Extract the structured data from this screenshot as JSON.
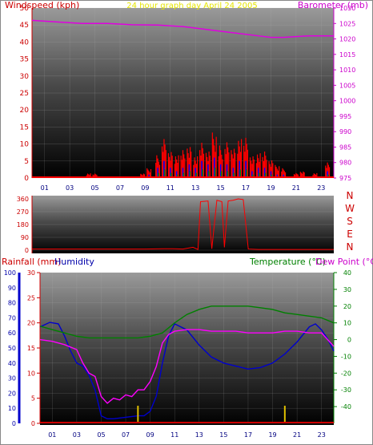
{
  "header": {
    "left_label": "Windspeed (kph)",
    "center_label": "24 hour graph day   April 24 2005",
    "right_label": "Barometer (mb)"
  },
  "colors": {
    "windspeed": "#ff0000",
    "barometer": "#e000e0",
    "rain": "#cc0000",
    "humidity": "#0000cc",
    "temperature": "#008000",
    "dewpoint": "#ff00ff",
    "gust": "#ff0000",
    "avg_wind": "#0000ff",
    "min_wind": "#008000",
    "center_title": "#ffff00"
  },
  "chart_data": [
    {
      "type": "line",
      "panel": "wind-barometer",
      "x_ticks": [
        "01",
        "03",
        "05",
        "07",
        "09",
        "11",
        "13",
        "15",
        "17",
        "19",
        "21",
        "23"
      ],
      "left_axis": {
        "label": "Windspeed (kph)",
        "ylim": [
          0,
          50
        ],
        "ticks": [
          0,
          5,
          10,
          15,
          20,
          25,
          30,
          35,
          40,
          45,
          50
        ]
      },
      "right_axis": {
        "label": "Barometer (mb)",
        "ylim": [
          975,
          1030
        ],
        "ticks": [
          975,
          980,
          985,
          990,
          995,
          1000,
          1005,
          1010,
          1015,
          1020,
          1025,
          1030
        ]
      },
      "series": [
        {
          "name": "Barometer (mb)",
          "axis": "right",
          "x": [
            0,
            2,
            4,
            6,
            8,
            10,
            12,
            14,
            16,
            18,
            19,
            20,
            22,
            24
          ],
          "values": [
            1026,
            1025.5,
            1025,
            1025,
            1024.6,
            1024.5,
            1024,
            1023,
            1022,
            1021,
            1020.5,
            1020.5,
            1021,
            1021
          ]
        }
      ],
      "wind_samples": {
        "x": [
          4.5,
          5.0,
          8.8,
          9.3,
          10.0,
          10.5,
          11.0,
          11.5,
          12.0,
          12.5,
          13.0,
          13.5,
          14.0,
          14.5,
          15.0,
          15.5,
          16.0,
          16.5,
          17.0,
          17.5,
          18.0,
          18.5,
          19.0,
          19.5,
          20.0,
          21.0,
          21.5,
          22.5,
          23.5
        ],
        "gust": [
          1.5,
          1.5,
          1.5,
          3,
          7,
          12,
          8,
          7,
          9,
          10,
          7,
          12,
          9,
          14,
          10,
          11,
          9,
          12,
          13,
          7,
          8,
          9,
          6,
          4,
          3,
          1.5,
          2,
          1.5,
          5
        ],
        "avg": [
          0.5,
          0.5,
          0.5,
          1,
          3,
          5,
          3,
          2,
          3,
          4,
          3,
          5,
          4,
          6,
          4,
          4,
          3,
          5,
          5,
          2,
          3,
          3,
          2,
          1,
          1,
          0.5,
          0.5,
          0.5,
          2
        ]
      }
    },
    {
      "type": "line",
      "panel": "wind-direction",
      "right_labels": [
        "N",
        "W",
        "S",
        "E",
        "N"
      ],
      "left_axis": {
        "ylim": [
          0,
          360
        ],
        "ticks": [
          0,
          90,
          180,
          270,
          360
        ]
      },
      "series": [
        {
          "name": "",
          "x": [
            0,
            9,
            10.5,
            11.2,
            12,
            12.8,
            13.2,
            13.4,
            14,
            14.3,
            14.7,
            15.1,
            15.3,
            15.6,
            16,
            16.4,
            16.8,
            17.2,
            18,
            24
          ],
          "values": [
            8,
            8,
            10,
            10,
            8,
            20,
            5,
            340,
            345,
            10,
            350,
            340,
            20,
            345,
            350,
            360,
            355,
            8,
            5,
            5
          ]
        }
      ]
    },
    {
      "type": "line",
      "panel": "rain-humidity-temperature",
      "x_ticks": [
        "01",
        "03",
        "05",
        "07",
        "09",
        "11",
        "13",
        "15",
        "17",
        "19",
        "21",
        "23"
      ],
      "header": {
        "rain_label": "Rainfall (mm)",
        "humidity_label": "Humidity",
        "temp_label": "Temperature (°C)",
        "dew_label": "Dew Point (°C)"
      },
      "humidity_axis": {
        "ylim": [
          0,
          100
        ],
        "ticks": [
          0,
          10,
          20,
          30,
          40,
          50,
          60,
          70,
          80,
          90,
          100
        ]
      },
      "rain_axis": {
        "ylim": [
          0,
          30
        ],
        "ticks": [
          0,
          5,
          10,
          15,
          20,
          25,
          30
        ]
      },
      "temp_axis": {
        "ylim": [
          -50,
          40
        ],
        "ticks": [
          -40,
          -30,
          -20,
          -10,
          0,
          10,
          20,
          30,
          40
        ]
      },
      "series": [
        {
          "name": "Humidity",
          "axis": "humidity",
          "x": [
            0,
            0.8,
            1.5,
            2,
            2.5,
            3,
            3.5,
            4,
            4.5,
            5,
            5.5,
            6,
            7,
            8,
            8.5,
            9,
            9.5,
            10,
            10.5,
            11,
            12,
            13,
            14,
            15,
            16,
            17,
            18,
            19,
            20,
            21,
            22,
            22.5,
            23,
            23.5,
            24
          ],
          "values": [
            64,
            67,
            66,
            58,
            48,
            40,
            38,
            32,
            22,
            5,
            3,
            3,
            4,
            5,
            5,
            8,
            18,
            40,
            58,
            66,
            62,
            52,
            44,
            40,
            38,
            36,
            37,
            40,
            46,
            54,
            64,
            66,
            62,
            56,
            48
          ]
        },
        {
          "name": "Temperature (°C)",
          "axis": "temp",
          "x": [
            0,
            1,
            2,
            3,
            4,
            5,
            6,
            7,
            8,
            9,
            10,
            11,
            12,
            13,
            14,
            15,
            16,
            17,
            18,
            19,
            20,
            21,
            22,
            23,
            24
          ],
          "values": [
            8,
            6,
            4,
            2,
            1,
            1,
            1,
            1,
            1,
            2,
            4,
            10,
            15,
            18,
            20,
            20,
            20,
            20,
            19,
            18,
            16,
            15,
            14,
            13,
            10
          ]
        },
        {
          "name": "Dew Point (°C)",
          "axis": "temp",
          "x": [
            0,
            1,
            2,
            3,
            3.5,
            4,
            4.5,
            5,
            5.5,
            6,
            6.5,
            7,
            7.5,
            8,
            8.5,
            9,
            9.5,
            10,
            10.5,
            11,
            12,
            13,
            14,
            15,
            16,
            17,
            18,
            19,
            20,
            21,
            22,
            23,
            23.5,
            24
          ],
          "values": [
            0,
            -1,
            -3,
            -6,
            -14,
            -20,
            -22,
            -34,
            -38,
            -35,
            -36,
            -33,
            -34,
            -30,
            -30,
            -25,
            -16,
            -2,
            3,
            5,
            6,
            6,
            5,
            5,
            5,
            4,
            4,
            4,
            5,
            5,
            4,
            4,
            0,
            -4
          ]
        }
      ],
      "rain_bars": {
        "x": [
          8,
          20
        ],
        "values": [
          3.5,
          3.5
        ]
      }
    }
  ]
}
